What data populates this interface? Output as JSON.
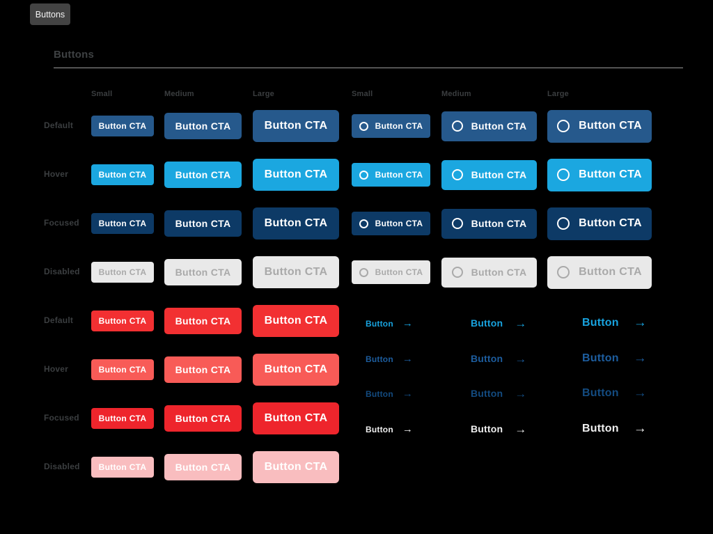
{
  "tab": {
    "label": "Buttons"
  },
  "heading": {
    "title": "Buttons"
  },
  "column_headers": [
    "Small",
    "Medium",
    "Large"
  ],
  "row_labels_blue": [
    "Default",
    "Hover",
    "Focused",
    "Disabled"
  ],
  "row_labels_red": [
    "Default",
    "Hover",
    "Focused",
    "Disabled"
  ],
  "button_label": "Button CTA",
  "link": {
    "label": "Button",
    "arrow": "→"
  },
  "colors": {
    "background": "#000000",
    "tab_bg": "#434343",
    "tab_fg": "#F2F2F2",
    "heading_fg": "#3E4143",
    "label_fg": "#3B3E40",
    "rule": "#9B9B9B",
    "blue_states": [
      {
        "state": "Default",
        "bg": "#26598C",
        "fg": "#FFFFFF"
      },
      {
        "state": "Hover",
        "bg": "#1BA7E0",
        "fg": "#FFFFFF"
      },
      {
        "state": "Focused",
        "bg": "#0D3A66",
        "fg": "#FFFFFF"
      },
      {
        "state": "Disabled",
        "bg": "#E9E9E9",
        "fg": "#A9A9A9"
      }
    ],
    "red_states": [
      {
        "state": "Default",
        "bg": "#F23032",
        "fg": "#FFFFFF"
      },
      {
        "state": "Hover",
        "bg": "#F85B57",
        "fg": "#FFFFFF"
      },
      {
        "state": "Focused",
        "bg": "#EE252C",
        "fg": "#FFFFFF"
      },
      {
        "state": "Disabled",
        "bg": "#F9BDBF",
        "fg": "#FFFFFF"
      }
    ],
    "link_states": [
      {
        "state": "Default",
        "color": "#18A3DF"
      },
      {
        "state": "Hover",
        "color": "#1D5D9E"
      },
      {
        "state": "Focused",
        "color": "#134B80"
      },
      {
        "state": "Disabled",
        "color": "#EFEFEF"
      }
    ]
  }
}
